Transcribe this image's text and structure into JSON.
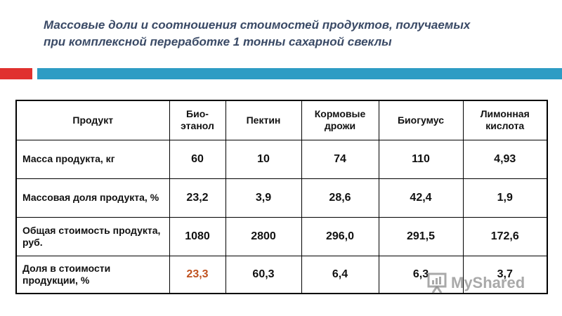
{
  "slide": {
    "title_line1": "Массовые доли и соотношения стоимостей продуктов, получаемых",
    "title_line2": "при комплексной переработке 1 тонны сахарной свеклы"
  },
  "table": {
    "headers": [
      "Продукт",
      "Био-\nэтанол",
      "Пектин",
      "Кормовые\nдрожи",
      "Биогумус",
      "Лимонная\nкислота"
    ],
    "rows": [
      {
        "label": "Масса продукта, кг",
        "values": [
          "60",
          "10",
          "74",
          "110",
          "4,93"
        ]
      },
      {
        "label": "Массовая доля продукта, %",
        "values": [
          "23,2",
          "3,9",
          "28,6",
          "42,4",
          "1,9"
        ]
      },
      {
        "label": "Общая стоимость продукта, руб.",
        "values": [
          "1080",
          "2800",
          "296,0",
          "291,5",
          "172,6"
        ]
      },
      {
        "label": "Доля в стоимости продукции, %",
        "values": [
          "23,3",
          "60,3",
          "6,4",
          "6,3",
          "3,7"
        ]
      }
    ]
  },
  "colors": {
    "title": "#3a4a66",
    "accent_red": "#e0312f",
    "accent_blue": "#2e9cc4",
    "highlight_value": "#c0521f"
  },
  "watermark": {
    "text": "MyShared",
    "icon": "presentation-board-icon"
  }
}
